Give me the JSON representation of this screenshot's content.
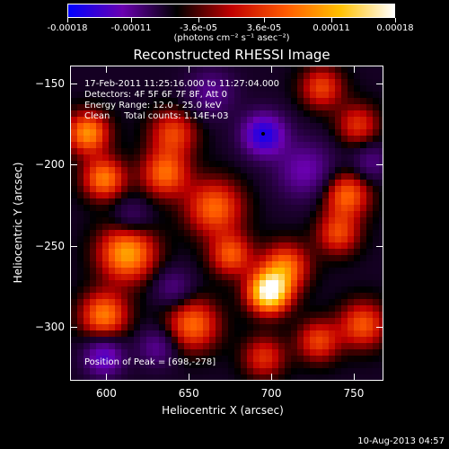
{
  "chart_data": {
    "type": "heatmap",
    "title": "Reconstructed RHESSI Image",
    "xlabel": "Heliocentric X (arcsec)",
    "ylabel": "Heliocentric Y (arcsec)",
    "xlim": [
      578,
      768
    ],
    "ylim": [
      -333,
      -139
    ],
    "xticks": [
      600,
      650,
      700,
      750
    ],
    "yticks": [
      -150,
      -200,
      -250,
      -300
    ],
    "colorbar": {
      "ticks": [
        -0.00018,
        -0.00011,
        -3.6e-05,
        3.6e-05,
        0.00011,
        0.00018
      ],
      "tick_labels": [
        "-0.00018",
        "-0.00011",
        "-3.6e-05",
        "3.6e-05",
        "0.00011",
        "0.00018"
      ],
      "range": [
        -0.00018,
        0.00018
      ],
      "unit_label": "(photons cm⁻² s⁻¹ asec⁻²)",
      "colormap": [
        "#0000ff",
        "#6a00b0",
        "#000000",
        "#c00000",
        "#ff5a00",
        "#ffc000",
        "#ffffff"
      ]
    },
    "annotations": {
      "time": "17-Feb-2011 11:25:16.000 to 11:27:04.000",
      "detectors": "Detectors: 4F 5F 6F 7F 8F, Att 0",
      "energy": "Energy Range: 12.0 - 25.0 keV",
      "clean": "Clean     Total counts: 1.14E+03",
      "peak": "Position of Peak = [698,-278]"
    },
    "peak": {
      "x": 698,
      "y": -278
    },
    "marker": {
      "x": 695,
      "y": -181
    },
    "sources": [
      {
        "x": 698,
        "y": -278,
        "amp": 1.0,
        "sigma": 9
      },
      {
        "x": 708,
        "y": -262,
        "amp": 0.55,
        "sigma": 10
      },
      {
        "x": 612,
        "y": -254,
        "amp": 0.7,
        "sigma": 12
      },
      {
        "x": 598,
        "y": -292,
        "amp": 0.6,
        "sigma": 10
      },
      {
        "x": 652,
        "y": -298,
        "amp": 0.55,
        "sigma": 11
      },
      {
        "x": 665,
        "y": -226,
        "amp": 0.55,
        "sigma": 12
      },
      {
        "x": 635,
        "y": -205,
        "amp": 0.55,
        "sigma": 10
      },
      {
        "x": 640,
        "y": -180,
        "amp": 0.45,
        "sigma": 10
      },
      {
        "x": 588,
        "y": -180,
        "amp": 0.65,
        "sigma": 9
      },
      {
        "x": 598,
        "y": -208,
        "amp": 0.6,
        "sigma": 9
      },
      {
        "x": 730,
        "y": -152,
        "amp": 0.45,
        "sigma": 9
      },
      {
        "x": 752,
        "y": -175,
        "amp": 0.4,
        "sigma": 9
      },
      {
        "x": 745,
        "y": -218,
        "amp": 0.55,
        "sigma": 10
      },
      {
        "x": 740,
        "y": -242,
        "amp": 0.45,
        "sigma": 9
      },
      {
        "x": 755,
        "y": -298,
        "amp": 0.5,
        "sigma": 10
      },
      {
        "x": 728,
        "y": -308,
        "amp": 0.45,
        "sigma": 9
      },
      {
        "x": 695,
        "y": -318,
        "amp": 0.4,
        "sigma": 9
      },
      {
        "x": 675,
        "y": -255,
        "amp": 0.5,
        "sigma": 9
      },
      {
        "x": 695,
        "y": -181,
        "amp": -0.85,
        "sigma": 9
      },
      {
        "x": 598,
        "y": -318,
        "amp": -0.6,
        "sigma": 8
      },
      {
        "x": 720,
        "y": -203,
        "amp": -0.45,
        "sigma": 12
      },
      {
        "x": 663,
        "y": -155,
        "amp": -0.35,
        "sigma": 10
      },
      {
        "x": 630,
        "y": -312,
        "amp": -0.35,
        "sigma": 8
      },
      {
        "x": 615,
        "y": -232,
        "amp": -0.25,
        "sigma": 8
      },
      {
        "x": 760,
        "y": -198,
        "amp": -0.3,
        "sigma": 8
      },
      {
        "x": 640,
        "y": -275,
        "amp": -0.3,
        "sigma": 8
      }
    ]
  },
  "footer": {
    "date": "10-Aug-2013 04:57"
  }
}
